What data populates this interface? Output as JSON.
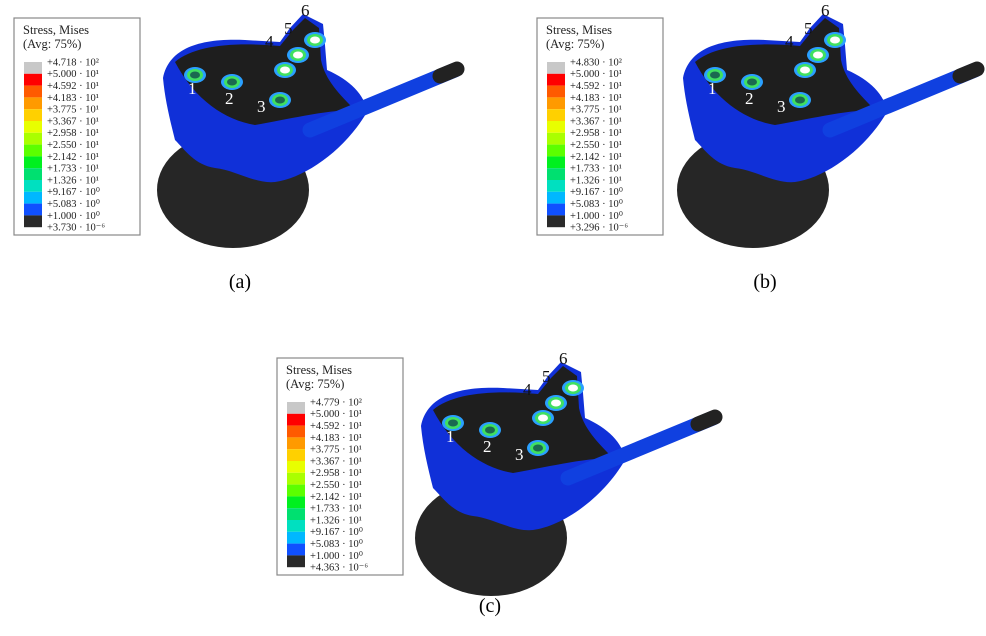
{
  "panels": [
    {
      "caption": "(a)",
      "legend": {
        "title": "Stress, Mises",
        "subtitle": "(Avg: 75%)",
        "labels": [
          "+4.718 · 10²",
          "+5.000 · 10¹",
          "+4.592 · 10¹",
          "+4.183 · 10¹",
          "+3.775 · 10¹",
          "+3.367 · 10¹",
          "+2.958 · 10¹",
          "+2.550 · 10¹",
          "+2.142 · 10¹",
          "+1.733 · 10¹",
          "+1.326 · 10¹",
          "+9.167 · 10⁰",
          "+5.083 · 10⁰",
          "+1.000 · 10⁰",
          "+3.730 · 10⁻⁶"
        ]
      },
      "holes": [
        "1",
        "2",
        "3",
        "4",
        "5",
        "6"
      ]
    },
    {
      "caption": "(b)",
      "legend": {
        "title": "Stress, Mises",
        "subtitle": "(Avg: 75%)",
        "labels": [
          "+4.830 · 10²",
          "+5.000 · 10¹",
          "+4.592 · 10¹",
          "+4.183 · 10¹",
          "+3.775 · 10¹",
          "+3.367 · 10¹",
          "+2.958 · 10¹",
          "+2.550 · 10¹",
          "+2.142 · 10¹",
          "+1.733 · 10¹",
          "+1.326 · 10¹",
          "+9.167 · 10⁰",
          "+5.083 · 10⁰",
          "+1.000 · 10⁰",
          "+3.296 · 10⁻⁶"
        ]
      },
      "holes": [
        "1",
        "2",
        "3",
        "4",
        "5",
        "6"
      ]
    },
    {
      "caption": "(c)",
      "legend": {
        "title": "Stress, Mises",
        "subtitle": "(Avg: 75%)",
        "labels": [
          "+4.779 · 10²",
          "+5.000 · 10¹",
          "+4.592 · 10¹",
          "+4.183 · 10¹",
          "+3.775 · 10¹",
          "+3.367 · 10¹",
          "+2.958 · 10¹",
          "+2.550 · 10¹",
          "+2.142 · 10¹",
          "+1.733 · 10¹",
          "+1.326 · 10¹",
          "+9.167 · 10⁰",
          "+5.083 · 10⁰",
          "+1.000 · 10⁰",
          "+4.363 · 10⁻⁶"
        ]
      },
      "holes": [
        "1",
        "2",
        "3",
        "4",
        "5",
        "6"
      ]
    }
  ]
}
